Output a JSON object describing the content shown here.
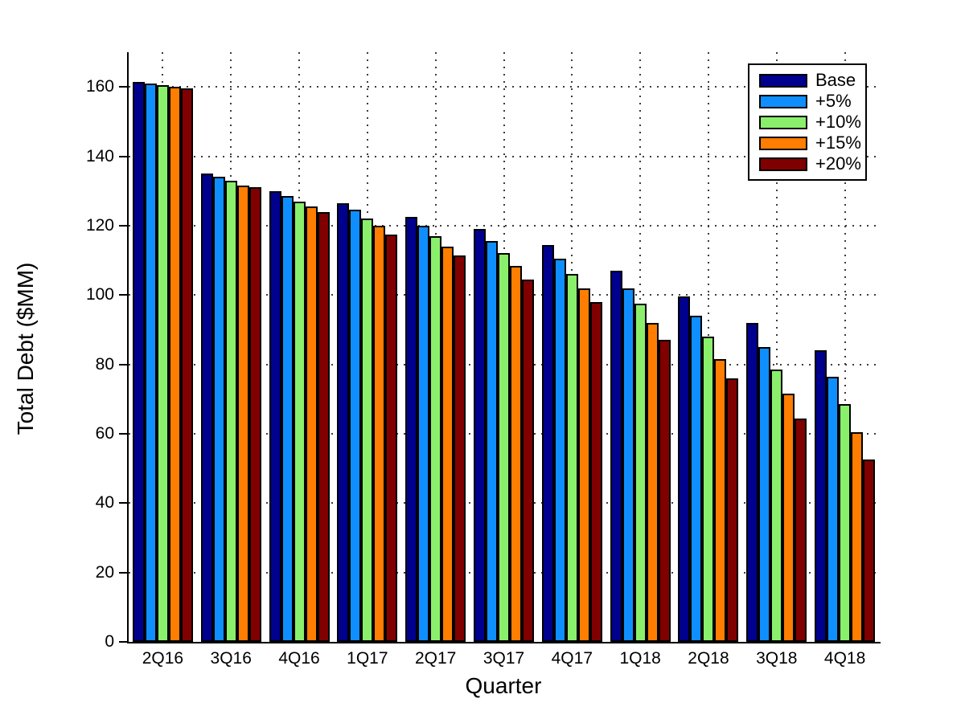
{
  "chart_data": {
    "type": "bar",
    "title": "",
    "xlabel": "Quarter",
    "ylabel": "Total Debt ($MM)",
    "categories": [
      "2Q16",
      "3Q16",
      "4Q16",
      "1Q17",
      "2Q17",
      "3Q17",
      "4Q17",
      "1Q18",
      "2Q18",
      "3Q18",
      "4Q18"
    ],
    "series": [
      {
        "name": "Base",
        "color": "#00008F",
        "values": [
          161.5,
          135,
          130,
          126.5,
          122.5,
          119,
          114.5,
          107,
          99.5,
          92,
          84
        ]
      },
      {
        "name": "+5%",
        "color": "#0F8FFF",
        "values": [
          161,
          134,
          128.5,
          124.5,
          120,
          115.5,
          110.5,
          102,
          94,
          85,
          76.5
        ]
      },
      {
        "name": "+10%",
        "color": "#8AF06C",
        "values": [
          160.5,
          133,
          127,
          122,
          117,
          112,
          106,
          97.5,
          88,
          78.5,
          68.5
        ]
      },
      {
        "name": "+15%",
        "color": "#FF7D00",
        "values": [
          160,
          131.5,
          125.5,
          120,
          114,
          108.5,
          102,
          92,
          81.5,
          71.5,
          60.5
        ]
      },
      {
        "name": "+20%",
        "color": "#800000",
        "values": [
          159.5,
          131,
          124,
          117.5,
          111.5,
          104.5,
          98,
          87,
          76,
          64.5,
          52.5
        ]
      }
    ],
    "ylim": [
      0,
      170
    ],
    "yticks": [
      0,
      20,
      40,
      60,
      80,
      100,
      120,
      140,
      160
    ],
    "grid": true,
    "legend_position": "top-right"
  }
}
